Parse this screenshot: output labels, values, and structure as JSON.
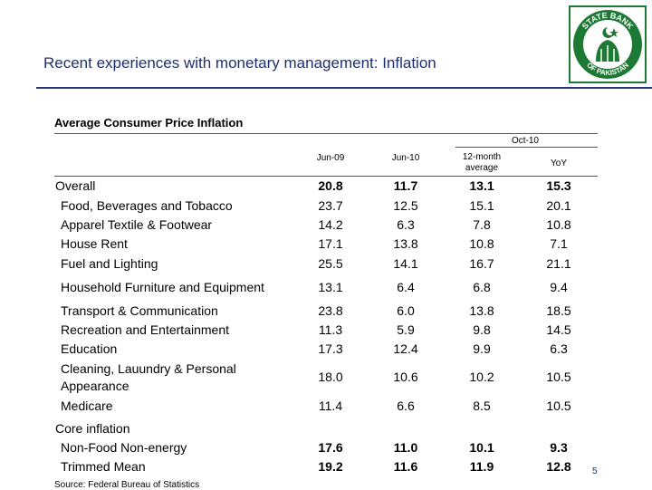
{
  "header": {
    "title": "Recent experiences with monetary management: Inflation",
    "logo_text_top": "STATE BANK",
    "logo_text_bottom": "OF PAKISTAN"
  },
  "table": {
    "subtitle": "Average Consumer Price Inflation",
    "group_header": "Oct-10",
    "columns": [
      "Jun-09",
      "Jun-10",
      "12-month average",
      "YoY"
    ],
    "rows": [
      {
        "label": "Overall",
        "values": [
          "20.8",
          "11.7",
          "13.1",
          "15.3"
        ]
      },
      {
        "label": "Food, Beverages and Tobacco",
        "values": [
          "23.7",
          "12.5",
          "15.1",
          "20.1"
        ]
      },
      {
        "label": "Apparel Textile & Footwear",
        "values": [
          "14.2",
          "6.3",
          "7.8",
          "10.8"
        ]
      },
      {
        "label": "House Rent",
        "values": [
          "17.1",
          "13.8",
          "10.8",
          "7.1"
        ]
      },
      {
        "label": "Fuel and Lighting",
        "values": [
          "25.5",
          "14.1",
          "16.7",
          "21.1"
        ]
      },
      {
        "label": "Household Furniture and Equipment",
        "values": [
          "13.1",
          "6.4",
          "6.8",
          "9.4"
        ]
      },
      {
        "label": "Transport & Communication",
        "values": [
          "23.8",
          "6.0",
          "13.8",
          "18.5"
        ]
      },
      {
        "label": "Recreation and Entertainment",
        "values": [
          "11.3",
          "5.9",
          "9.8",
          "14.5"
        ]
      },
      {
        "label": "Education",
        "values": [
          "17.3",
          "12.4",
          "9.9",
          "6.3"
        ]
      },
      {
        "label": "Cleaning, Lauundry & Personal",
        "label2": "Appearance",
        "values": [
          "18.0",
          "10.6",
          "10.2",
          "10.5"
        ]
      },
      {
        "label": "Medicare",
        "values": [
          "11.4",
          "6.6",
          "8.5",
          "10.5"
        ]
      },
      {
        "label": "Core inflation"
      },
      {
        "label": "Non-Food Non-energy",
        "values": [
          "17.6",
          "11.0",
          "10.1",
          "9.3"
        ]
      },
      {
        "label": "Trimmed Mean",
        "values": [
          "19.2",
          "11.6",
          "11.9",
          "12.8"
        ]
      }
    ],
    "source": "Source: Federal Bureau of Statistics"
  },
  "page_number": "5",
  "colors": {
    "title": "#1f2f6e",
    "logo_green": "#1d7a35"
  }
}
